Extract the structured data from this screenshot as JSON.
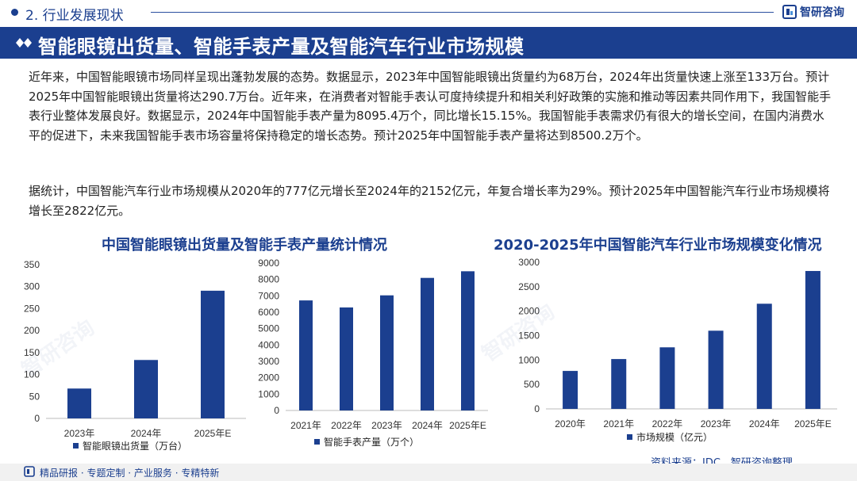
{
  "header": {
    "section": "2. 行业发展现状",
    "brand": "智研咨询",
    "title": "智能眼镜出货量、智能手表产量及智能汽车行业市场规模"
  },
  "paragraphs": {
    "p1": "近年来，中国智能眼镜市场同样呈现出蓬勃发展的态势。数据显示，2023年中国智能眼镜出货量约为68万台，2024年出货量快速上涨至133万台。预计2025年中国智能眼镜出货量将达290.7万台。近年来，在消费者对智能手表认可度持续提升和相关利好政策的实施和推动等因素共同作用下，我国智能手表行业整体发展良好。数据显示，2024年中国智能手表产量为8095.4万个，同比增长15.15%。我国智能手表需求仍有很大的增长空间，在国内消费水平的促进下，未来我国智能手表市场容量将保持稳定的增长态势。预计2025年中国智能手表产量将达到8500.2万个。",
    "p2": "据统计，中国智能汽车行业市场规模从2020年的777亿元增长至2024年的2152亿元，年复合增长率为29%。预计2025年中国智能汽车行业市场规模将增长至2822亿元。"
  },
  "chart_titles": {
    "left": "中国智能眼镜出货量及智能手表产量统计情况",
    "right": "2020-2025年中国智能汽车行业市场规模变化情况"
  },
  "chart_data": [
    {
      "type": "bar",
      "title": "中国智能眼镜出货量及智能手表产量统计情况",
      "categories": [
        "2023年",
        "2024年",
        "2025年E"
      ],
      "series": [
        {
          "name": "智能眼镜出货量（万台）",
          "values": [
            68,
            133,
            290.7
          ]
        }
      ],
      "yticks": [
        "0",
        "50",
        "100",
        "150",
        "200",
        "250",
        "300",
        "350"
      ],
      "ylim": [
        0,
        350
      ],
      "legend": "bottom",
      "color": "#1b3f8f"
    },
    {
      "type": "bar",
      "title": "中国智能眼镜出货量及智能手表产量统计情况",
      "categories": [
        "2021年",
        "2022年",
        "2023年",
        "2024年",
        "2025年E"
      ],
      "series": [
        {
          "name": "智能手表产量（万个）",
          "values": [
            6720,
            6290,
            7030,
            8095.4,
            8500.2
          ]
        }
      ],
      "yticks": [
        "0",
        "1000",
        "2000",
        "3000",
        "4000",
        "5000",
        "6000",
        "7000",
        "8000",
        "9000"
      ],
      "ylim": [
        0,
        9000
      ],
      "legend": "bottom",
      "color": "#1b3f8f"
    },
    {
      "type": "bar",
      "title": "2020-2025年中国智能汽车行业市场规模变化情况",
      "categories": [
        "2020年",
        "2021年",
        "2022年",
        "2023年",
        "2024年",
        "2025年E"
      ],
      "series": [
        {
          "name": "市场规模（亿元）",
          "values": [
            777,
            1020,
            1260,
            1600,
            2152,
            2822
          ]
        }
      ],
      "yticks": [
        "0",
        "500",
        "1000",
        "1500",
        "2000",
        "2500",
        "3000"
      ],
      "ylim": [
        0,
        3000
      ],
      "legend": "bottom",
      "color": "#1b3f8f"
    }
  ],
  "source": "资料来源：IDC、智研咨询整理",
  "footer": "精品研报 · 专题定制 · 产业服务 · 专精特新",
  "watermark": "智研咨询",
  "colors": {
    "brand": "#1b3f8f",
    "bar": "#1b3f8f"
  }
}
